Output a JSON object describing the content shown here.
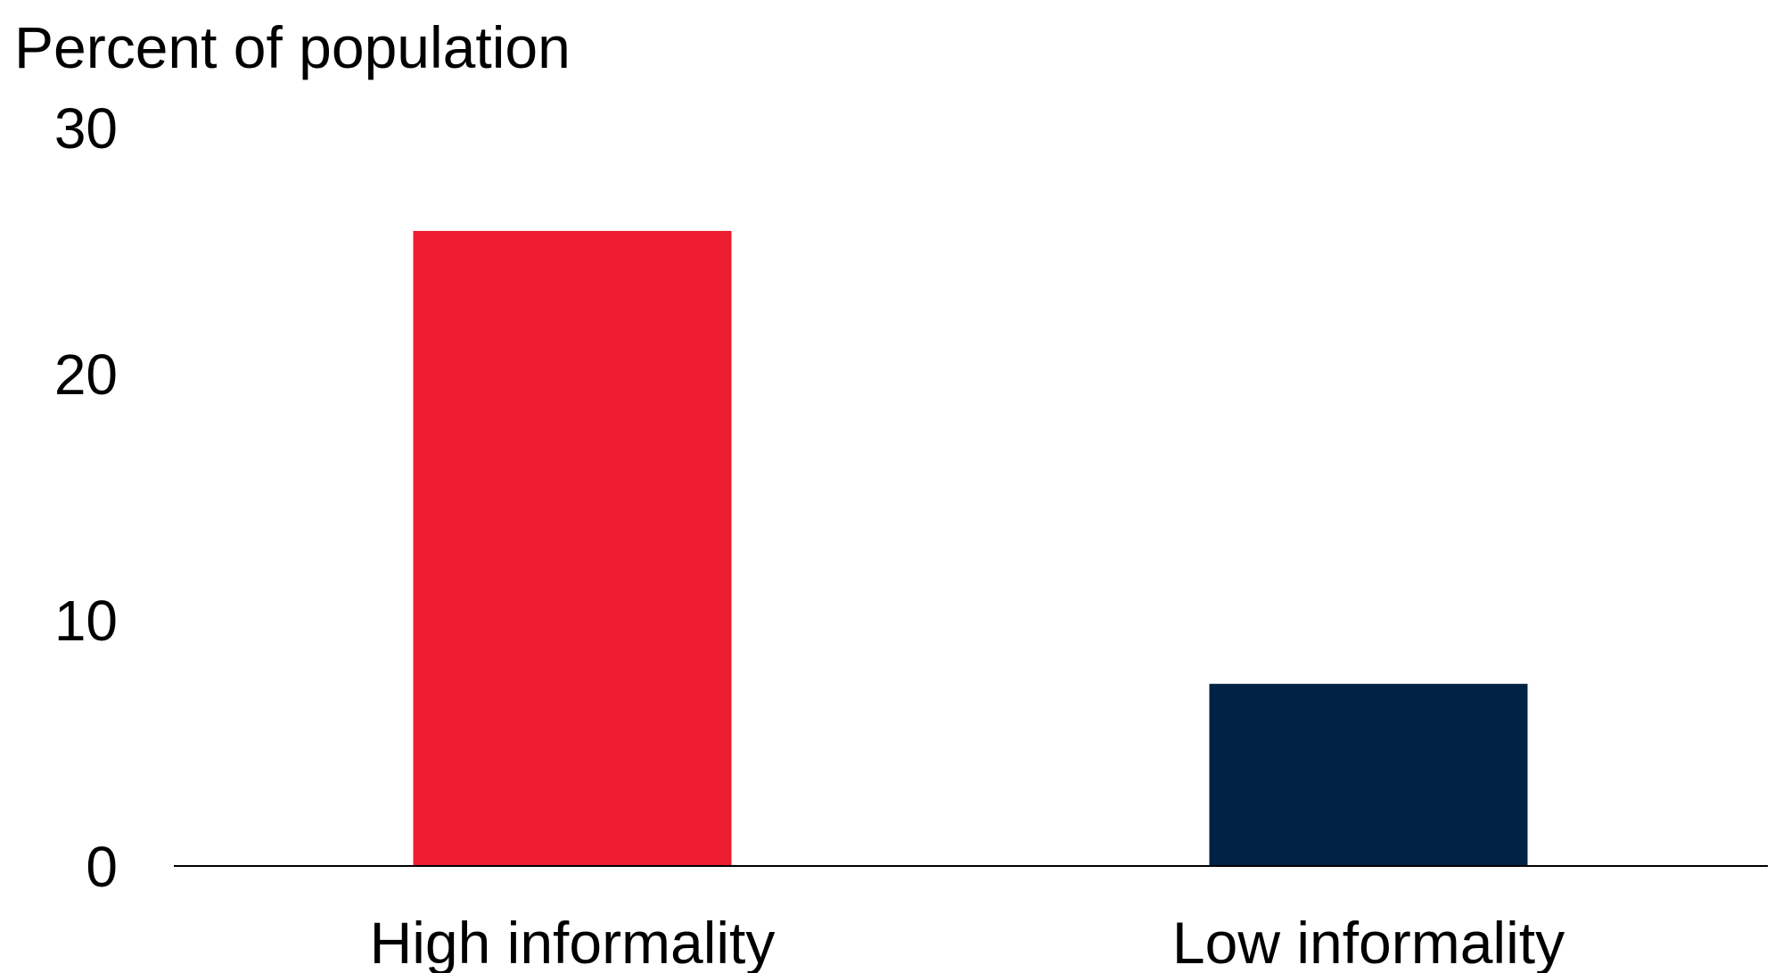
{
  "chart_data": {
    "type": "bar",
    "ylabel": "Percent of population",
    "categories": [
      "High informality",
      "Low informality"
    ],
    "values": [
      25.8,
      7.4
    ],
    "ylim": [
      0,
      30
    ],
    "yticks": [
      "0",
      "10",
      "20",
      "30"
    ],
    "grid": false,
    "colors": [
      "#ED1C2E",
      "#002244"
    ],
    "axis_color": "#000000"
  }
}
